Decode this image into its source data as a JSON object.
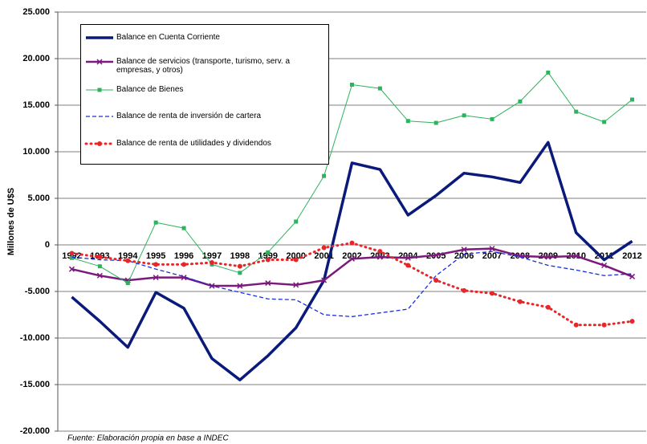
{
  "chart_data": {
    "type": "line",
    "y_label": "Millones de U$S",
    "note": "Fuente: Elaboración propia en base a INDEC",
    "categories": [
      "1992",
      "1993",
      "1994",
      "1995",
      "1996",
      "1997",
      "1998",
      "1999",
      "2000",
      "2001",
      "2002",
      "2003",
      "2004",
      "2005",
      "2006",
      "2007",
      "2008",
      "2009",
      "2010",
      "2011",
      "2012"
    ],
    "ylim": [
      -20000,
      25000
    ],
    "yticks": [
      {
        "value": -20000,
        "label": "-20.000"
      },
      {
        "value": -15000,
        "label": "-15.000"
      },
      {
        "value": -10000,
        "label": "-10.000"
      },
      {
        "value": -5000,
        "label": "-5.000"
      },
      0,
      {
        "value": 5000,
        "label": "5.000"
      },
      {
        "value": 10000,
        "label": "10.000"
      },
      {
        "value": 15000,
        "label": "15.000"
      },
      {
        "value": 20000,
        "label": "20.000"
      },
      {
        "value": 25000,
        "label": "25.000"
      }
    ],
    "grid": true,
    "series": [
      {
        "name": "Balance en Cuenta Corriente",
        "color": "#0a1a7a",
        "width": 3.5,
        "dash": "solid",
        "marker": "none",
        "values": [
          -5600,
          -8200,
          -11000,
          -5100,
          -6800,
          -12200,
          -14500,
          -11900,
          -8900,
          -3800,
          8800,
          8100,
          3200,
          5300,
          7700,
          7300,
          6700,
          11000,
          1300,
          -1600,
          400
        ]
      },
      {
        "name": "Balance de servicios (transporte, turismo, serv. a empresas, y otros)",
        "color": "#7b1a7b",
        "width": 2.5,
        "dash": "solid",
        "marker": "x",
        "values": [
          -2600,
          -3300,
          -3800,
          -3500,
          -3500,
          -4400,
          -4400,
          -4100,
          -4300,
          -3800,
          -1500,
          -1300,
          -1400,
          -1100,
          -500,
          -400,
          -1200,
          -1300,
          -1200,
          -2200,
          -3400
        ]
      },
      {
        "name": "Balance de Bienes",
        "color": "#2db35d",
        "width": 1,
        "dash": "solid",
        "marker": "square",
        "values": [
          -1400,
          -2300,
          -4100,
          2400,
          1800,
          -2100,
          -3000,
          -800,
          2500,
          7400,
          17200,
          16800,
          13300,
          13100,
          13900,
          13500,
          15400,
          18500,
          14300,
          13200,
          15600
        ]
      },
      {
        "name": "Balance de renta de inversión de cartera",
        "color": "#1a2de0",
        "width": 1.3,
        "dash": "dashed",
        "marker": "none",
        "values": [
          -1300,
          -1600,
          -1700,
          -2600,
          -3400,
          -4400,
          -5100,
          -5800,
          -5900,
          -7500,
          -7700,
          -7300,
          -6900,
          -3300,
          -1000,
          -700,
          -1300,
          -2200,
          -2700,
          -3300,
          -3100
        ]
      },
      {
        "name": "Balance de renta de utilidades y dividendos",
        "color": "#e8262a",
        "width": 3,
        "dash": "dotted",
        "marker": "circle",
        "values": [
          -900,
          -1300,
          -1700,
          -2100,
          -2100,
          -1900,
          -2300,
          -1600,
          -1600,
          -300,
          200,
          -700,
          -2200,
          -3800,
          -4900,
          -5200,
          -6100,
          -6700,
          -8600,
          -8600,
          -8200
        ]
      }
    ]
  }
}
